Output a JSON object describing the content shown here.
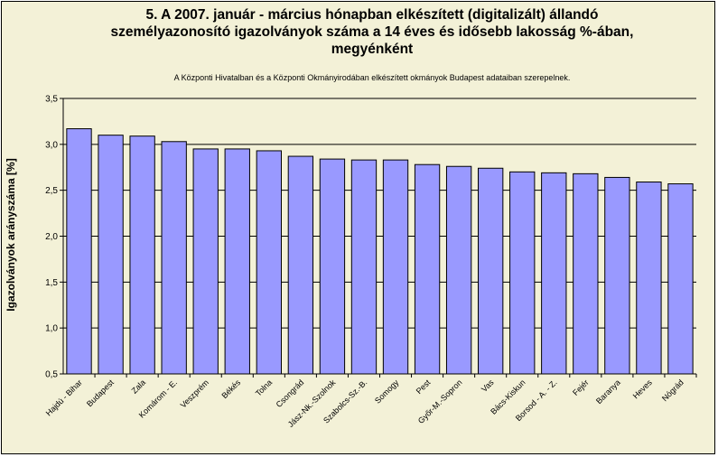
{
  "chart_data": {
    "type": "bar",
    "title": "5. A 2007. január - március hónapban elkészített (digitalizált) állandó személyazonosító igazolványok száma a 14 éves és idősebb lakosság %-ában, megyénként",
    "title_lines": [
      "5. A 2007. január - március hónapban elkészített (digitalizált) állandó",
      "személyazonosító igazolványok száma a 14 éves és idősebb lakosság %-ában,",
      "megyénként"
    ],
    "subtitle": "A  Központi Hivatalban és a Központi Okmányirodában elkészített  okmányok Budapest adataiban szerepelnek.",
    "ylabel": "Igazolványok arányszáma [%]",
    "xlabel": "",
    "ylim": [
      0.5,
      3.5
    ],
    "yticks": [
      "0,5",
      "1,0",
      "1,5",
      "2,0",
      "2,5",
      "3,0",
      "3,5"
    ],
    "grid": "horizontal",
    "legend": "none",
    "categories": [
      "Hajdú - Bihar",
      "Budapest",
      "Zala",
      "Komárom - E.",
      "Veszprém",
      "Békés",
      "Tolna",
      "Csongrád",
      "Jász-Nk.-Szolnok",
      "Szabolcs-Sz.-B.",
      "Somogy",
      "Pest",
      "Győr-M.-Sopron",
      "Vas",
      "Bács-Kiskun",
      "Borsod - A. - Z.",
      "Fejér",
      "Baranya",
      "Heves",
      "Nógrád"
    ],
    "values": [
      3.17,
      3.1,
      3.09,
      3.03,
      2.95,
      2.95,
      2.93,
      2.87,
      2.84,
      2.83,
      2.83,
      2.78,
      2.76,
      2.74,
      2.7,
      2.69,
      2.68,
      2.64,
      2.59,
      2.57
    ],
    "colors": {
      "bar_fill": "#9999ff",
      "bar_stroke": "#000000",
      "plot_bg": "#f3f1d7",
      "grid": "#000000"
    }
  }
}
